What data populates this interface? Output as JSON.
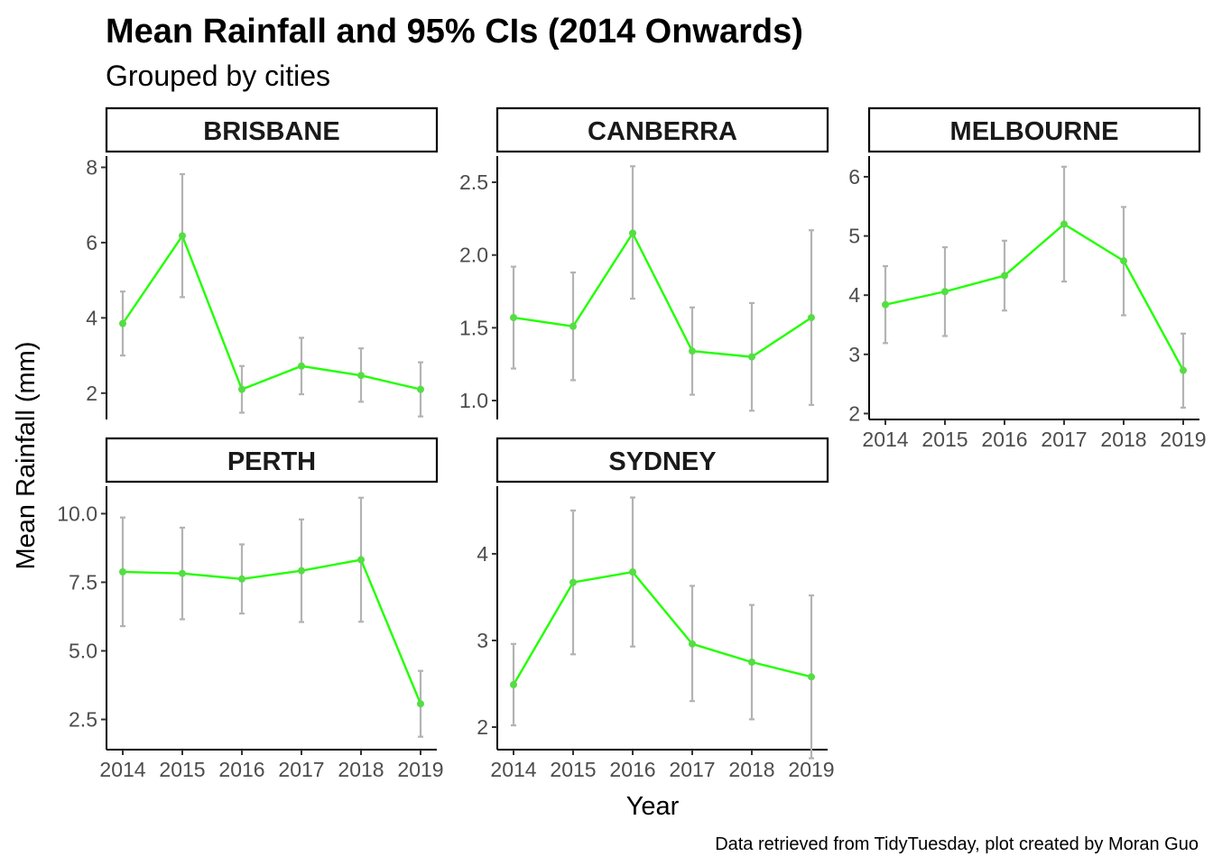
{
  "chart_data": {
    "type": "line",
    "title": "Mean Rainfall and 95% CIs (2014 Onwards)",
    "subtitle": "Grouped by cities",
    "xlabel": "Year",
    "ylabel": "Mean Rainfall (mm)",
    "caption": "Data retrieved from TidyTuesday, plot created by Moran Guo",
    "x": [
      "2014",
      "2015",
      "2016",
      "2017",
      "2018",
      "2019"
    ],
    "facet_scales": "free_y",
    "line_color": "#22ff00",
    "point_color": "#55dd44",
    "errorbar_color": "#b3b3b3",
    "grid": false,
    "panels": [
      {
        "name": "BRISBANE",
        "ylim": [
          1.3,
          8.3
        ],
        "yticks": [
          2,
          4,
          6,
          8
        ],
        "ytick_labels": [
          "2",
          "4",
          "6",
          "8"
        ],
        "values": [
          3.85,
          6.18,
          2.1,
          2.72,
          2.47,
          2.1
        ],
        "lower": [
          3.0,
          4.55,
          1.48,
          1.97,
          1.77,
          1.38
        ],
        "upper": [
          4.7,
          7.82,
          2.72,
          3.47,
          3.19,
          2.82
        ],
        "show_x_ticks": false
      },
      {
        "name": "CANBERRA",
        "ylim": [
          0.87,
          2.68
        ],
        "yticks": [
          1.0,
          1.5,
          2.0,
          2.5
        ],
        "ytick_labels": [
          "1.0",
          "1.5",
          "2.0",
          "2.5"
        ],
        "values": [
          1.57,
          1.51,
          2.15,
          1.34,
          1.3,
          1.57
        ],
        "lower": [
          1.22,
          1.14,
          1.7,
          1.04,
          0.93,
          0.97
        ],
        "upper": [
          1.92,
          1.88,
          2.61,
          1.64,
          1.67,
          2.17
        ],
        "show_x_ticks": false
      },
      {
        "name": "MELBOURNE",
        "ylim": [
          1.9,
          6.35
        ],
        "yticks": [
          2,
          3,
          4,
          5,
          6
        ],
        "ytick_labels": [
          "2",
          "3",
          "4",
          "5",
          "6"
        ],
        "values": [
          3.84,
          4.06,
          4.33,
          5.2,
          4.58,
          2.73
        ],
        "lower": [
          3.19,
          3.31,
          3.74,
          4.23,
          3.66,
          2.1
        ],
        "upper": [
          4.49,
          4.81,
          4.92,
          6.17,
          5.49,
          3.35
        ],
        "show_x_ticks": true
      },
      {
        "name": "PERTH",
        "ylim": [
          1.4,
          11.0
        ],
        "yticks": [
          2.5,
          5.0,
          7.5,
          10.0
        ],
        "ytick_labels": [
          "2.5",
          "5.0",
          "7.5",
          "10.0"
        ],
        "values": [
          7.88,
          7.82,
          7.62,
          7.92,
          8.32,
          3.07
        ],
        "lower": [
          5.9,
          6.15,
          6.36,
          6.05,
          6.06,
          1.87
        ],
        "upper": [
          9.86,
          9.49,
          8.88,
          9.79,
          10.58,
          4.27
        ],
        "show_x_ticks": true
      },
      {
        "name": "SYDNEY",
        "ylim": [
          1.74,
          4.78
        ],
        "yticks": [
          2,
          3,
          4
        ],
        "ytick_labels": [
          "2",
          "3",
          "4"
        ],
        "values": [
          2.49,
          3.67,
          3.79,
          2.96,
          2.75,
          2.58
        ],
        "lower": [
          2.02,
          2.84,
          2.93,
          2.3,
          2.09,
          1.64
        ],
        "upper": [
          2.96,
          4.5,
          4.65,
          3.63,
          3.41,
          3.52
        ],
        "show_x_ticks": true
      }
    ]
  }
}
